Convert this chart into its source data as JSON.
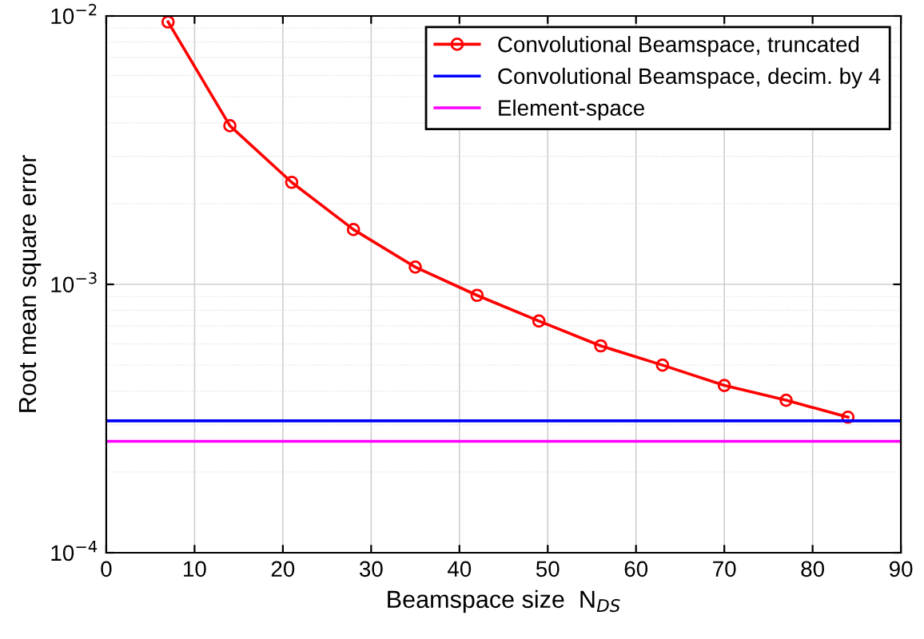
{
  "chart_data": {
    "type": "line",
    "xlabel": "Beamspace size  N$_{DS}$",
    "ylabel": "Root mean square error",
    "log": "y",
    "grid": true,
    "legend": "top right",
    "xlim": [
      0,
      90
    ],
    "xticks": [
      0,
      10,
      20,
      30,
      40,
      50,
      60,
      70,
      80,
      90
    ],
    "ylim": [
      0.0001,
      0.01
    ],
    "yticks": [
      {
        "value": 0.0001,
        "label": "10$^{−4}$"
      },
      {
        "value": 0.001,
        "label": "10$^{−3}$"
      },
      {
        "value": 0.01,
        "label": "10$^{−2}$"
      }
    ],
    "series": [
      {
        "name": "Convolutional Beamspace, truncated",
        "color": "#ff0000",
        "marker": "circle",
        "x": [
          7,
          14,
          21,
          28,
          35,
          42,
          49,
          56,
          63,
          70,
          77,
          84
        ],
        "values": [
          0.0095,
          0.0039,
          0.0024,
          0.0016,
          0.00116,
          0.00091,
          0.00073,
          0.00059,
          0.0005,
          0.00042,
          0.00037,
          0.00032
        ]
      },
      {
        "name": "Convolutional Beamspace, decim. by 4",
        "color": "#0000ff",
        "marker": "none",
        "x": [
          0,
          90
        ],
        "values": [
          0.00031,
          0.00031
        ]
      },
      {
        "name": "Element-space",
        "color": "#ff00ff",
        "marker": "none",
        "x": [
          0,
          90
        ],
        "values": [
          0.00026,
          0.00026
        ]
      }
    ]
  }
}
